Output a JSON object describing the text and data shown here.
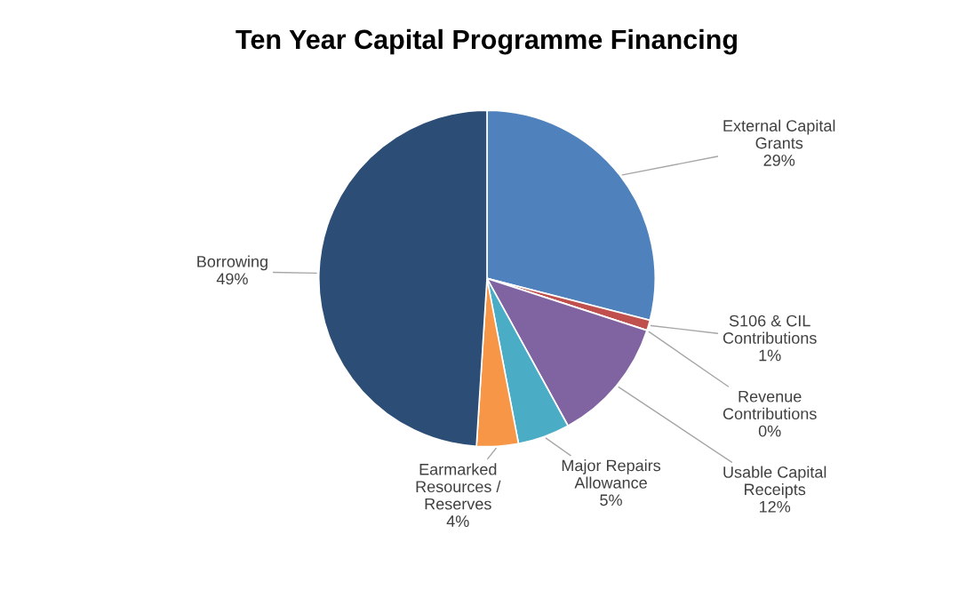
{
  "chart_data": {
    "type": "pie",
    "title": "Ten Year Capital Programme Financing",
    "categories": [
      "External Capital\nGrants",
      "S106 & CIL\nContributions",
      "Revenue\nContributions",
      "Usable Capital\nReceipts",
      "Major Repairs\nAllowance",
      "Earmarked\nResources /\nReserves",
      "Borrowing"
    ],
    "values": [
      29,
      1,
      0,
      12,
      5,
      4,
      49
    ],
    "value_labels": [
      "29%",
      "1%",
      "0%",
      "12%",
      "5%",
      "4%",
      "49%"
    ],
    "colors": [
      "#4f81bd",
      "#c0504d",
      "#9bbb59",
      "#8064a2",
      "#4bacc6",
      "#f79646",
      "#2c4d75"
    ],
    "legend": false
  }
}
